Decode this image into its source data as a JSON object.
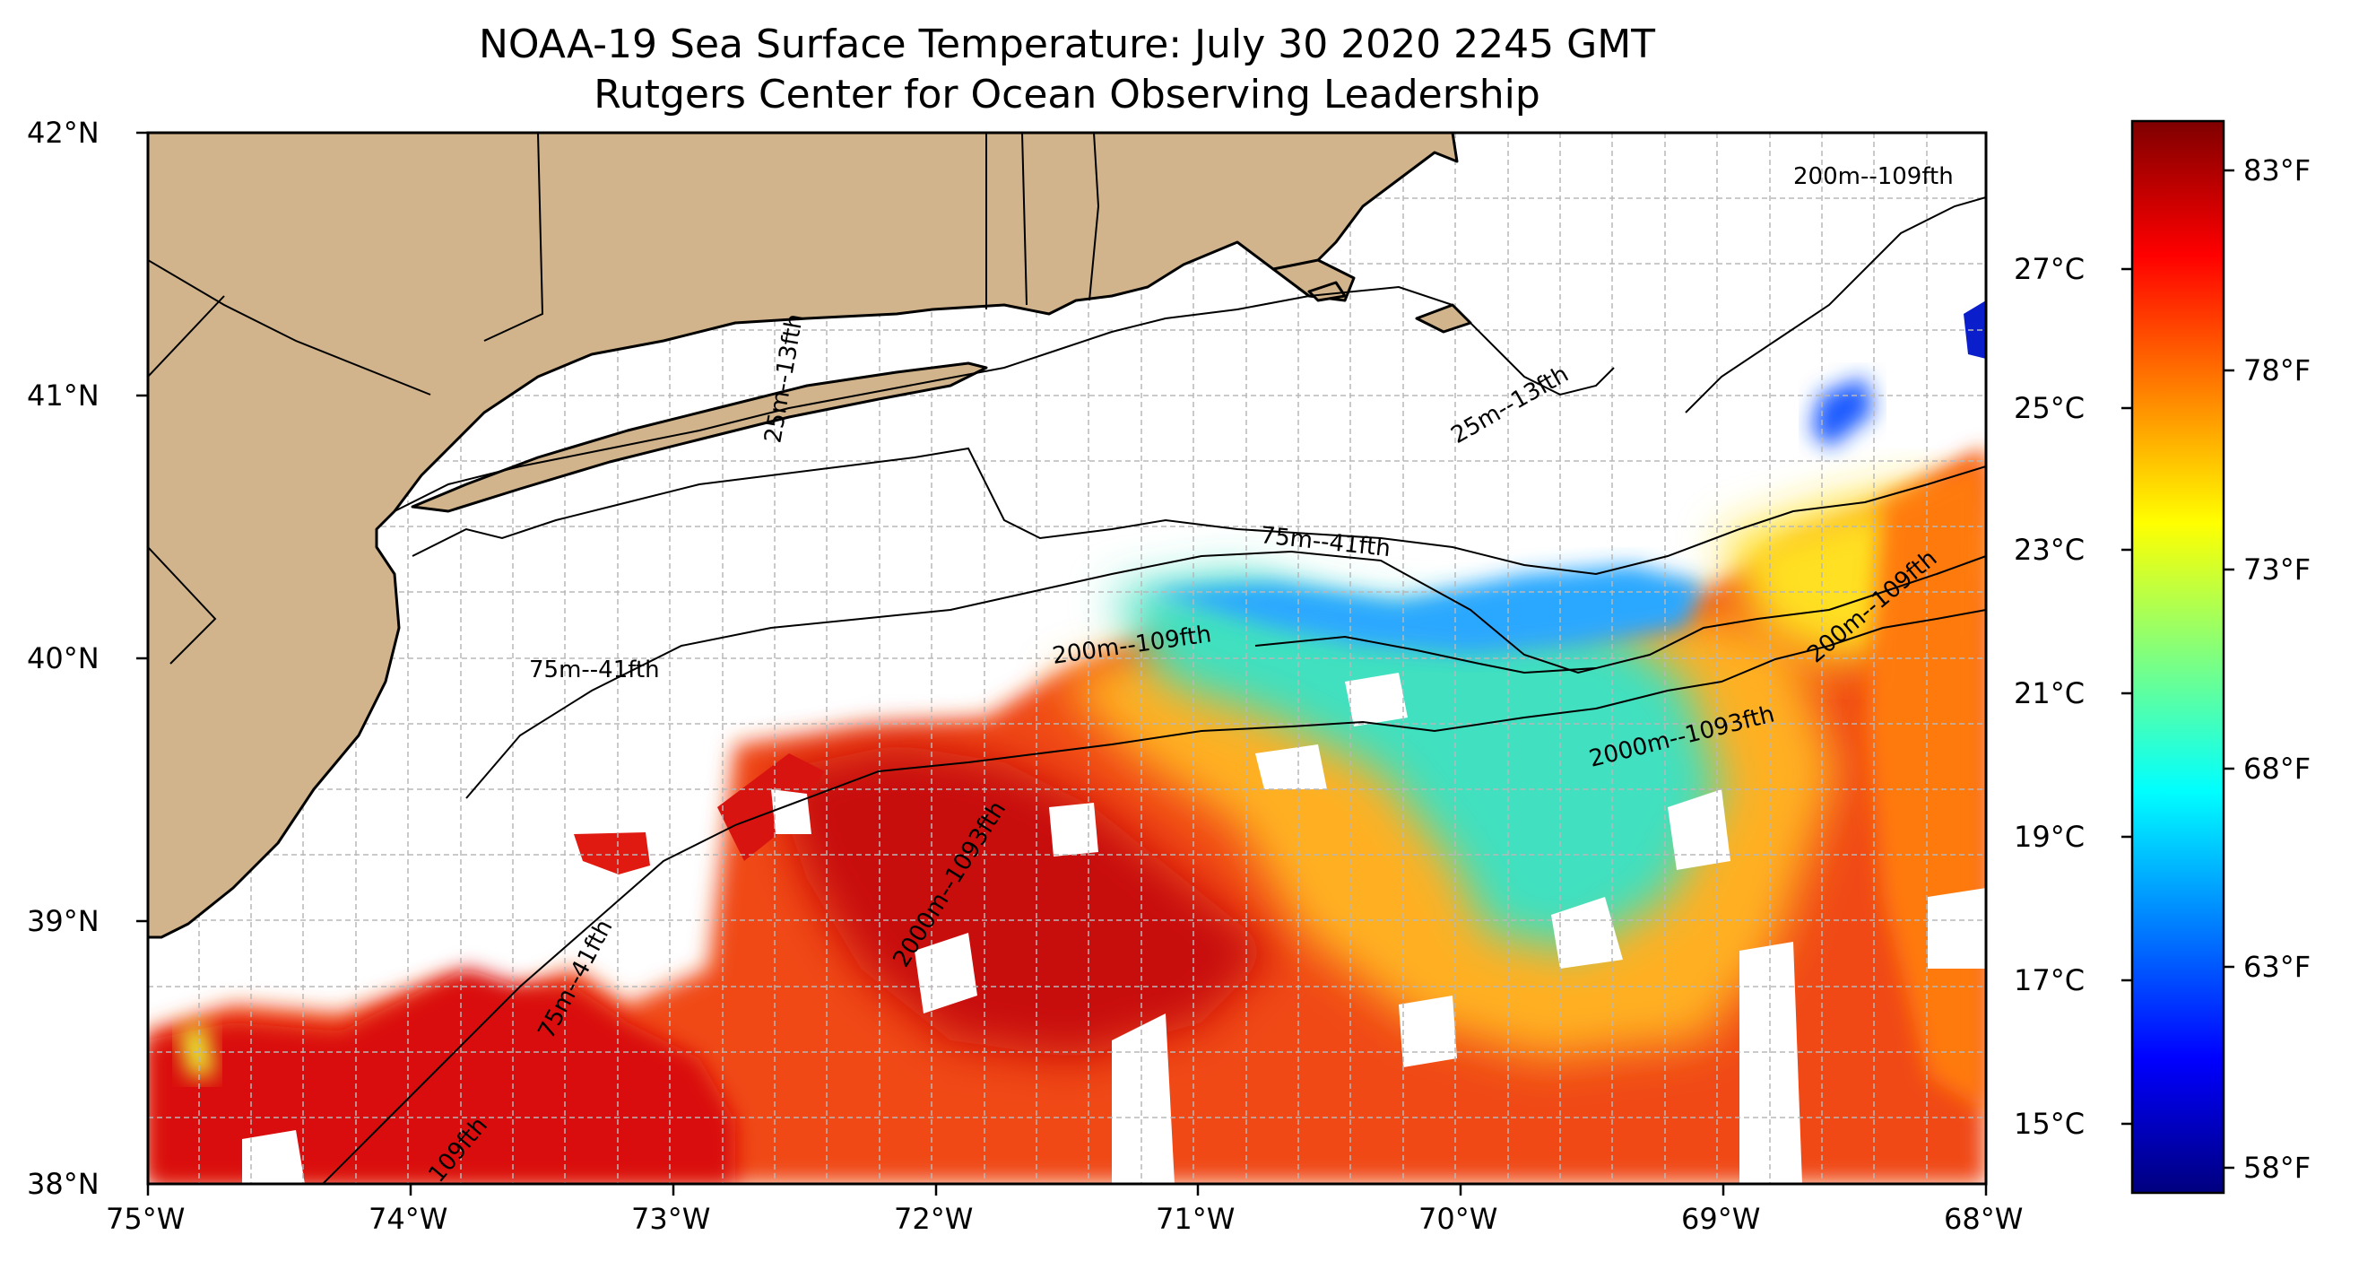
{
  "title": {
    "line1": "NOAA-19 Sea Surface Temperature: July 30 2020 2245 GMT",
    "line2": "Rutgers Center for Ocean Observing Leadership"
  },
  "map": {
    "lon_range": [
      -75,
      -68
    ],
    "lat_range": [
      38,
      42
    ],
    "x_ticks": [
      "75°W",
      "74°W",
      "73°W",
      "72°W",
      "71°W",
      "70°W",
      "69°W",
      "68°W"
    ],
    "y_ticks": [
      "42°N",
      "41°N",
      "40°N",
      "39°N",
      "38°N"
    ],
    "gridlines": true,
    "land_color": "#D2B48C",
    "contour_labels": [
      {
        "text": "75m--41fth"
      },
      {
        "text": "75m--41fth"
      },
      {
        "text": "75m--41fth"
      },
      {
        "text": "200m--109fth"
      },
      {
        "text": "200m--109fth"
      },
      {
        "text": "200m--109fth"
      },
      {
        "text": "109fth"
      },
      {
        "text": "2000m--1093fth"
      },
      {
        "text": "2000m--1093fth"
      },
      {
        "text": "25m--13fth"
      },
      {
        "text": "25m--13fth"
      }
    ]
  },
  "colorbar": {
    "celsius_ticks": [
      "27°C",
      "25°C",
      "23°C",
      "21°C",
      "19°C",
      "17°C",
      "15°C"
    ],
    "fahrenheit_ticks": [
      "83°F",
      "78°F",
      "73°F",
      "68°F",
      "63°F",
      "58°F"
    ],
    "colors": [
      "#00007F",
      "#0000FF",
      "#007FFF",
      "#00FFFF",
      "#7FFF7F",
      "#FFFF00",
      "#FF7F00",
      "#FF0000",
      "#7F0000"
    ]
  }
}
